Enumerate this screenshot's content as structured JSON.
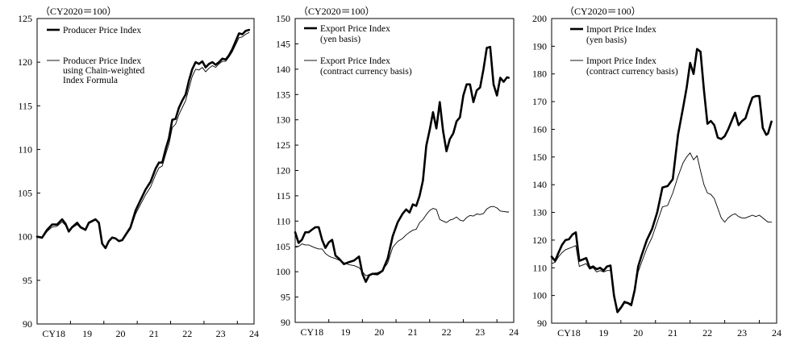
{
  "chart_data": [
    {
      "type": "line",
      "unit_label": "（CY2020＝100）",
      "ylim": [
        90,
        125
      ],
      "yticks": [
        90,
        95,
        100,
        105,
        110,
        115,
        120,
        125
      ],
      "xlim": [
        2018,
        2024.5
      ],
      "xticks": [
        {
          "label": "CY18",
          "value": 2018.5
        },
        {
          "label": "19",
          "value": 2019.5
        },
        {
          "label": "20",
          "value": 2020.5
        },
        {
          "label": "21",
          "value": 2021.5
        },
        {
          "label": "22",
          "value": 2022.5
        },
        {
          "label": "23",
          "value": 2023.5
        },
        {
          "label": "24",
          "value": 2024.5
        }
      ],
      "series": [
        {
          "name": "Producer Price Index",
          "legend_lines": [
            "Producer Price Index"
          ],
          "style": "thick",
          "x": [
            2018.0,
            2018.15,
            2018.3,
            2018.45,
            2018.6,
            2018.75,
            2018.85,
            2018.95,
            2019.05,
            2019.2,
            2019.3,
            2019.45,
            2019.55,
            2019.65,
            2019.75,
            2019.85,
            2019.95,
            2020.05,
            2020.15,
            2020.25,
            2020.35,
            2020.45,
            2020.55,
            2020.65,
            2020.8,
            2020.95,
            2021.1,
            2021.25,
            2021.4,
            2021.55,
            2021.65,
            2021.75,
            2021.85,
            2021.95,
            2022.05,
            2022.15,
            2022.25,
            2022.35,
            2022.45,
            2022.55,
            2022.65,
            2022.75,
            2022.85,
            2022.95,
            2023.05,
            2023.15,
            2023.25,
            2023.35,
            2023.45,
            2023.55,
            2023.65,
            2023.75,
            2023.85,
            2023.95,
            2024.05,
            2024.15,
            2024.25,
            2024.35
          ],
          "values": [
            100.0,
            99.9,
            100.8,
            101.4,
            101.4,
            102.0,
            101.5,
            100.6,
            101.1,
            101.6,
            101.1,
            100.8,
            101.6,
            101.8,
            102.0,
            101.6,
            99.2,
            98.7,
            99.5,
            99.9,
            99.8,
            99.5,
            99.6,
            100.2,
            101.1,
            103.0,
            104.2,
            105.4,
            106.3,
            107.8,
            108.5,
            108.5,
            110.0,
            111.3,
            113.4,
            113.5,
            114.8,
            115.6,
            116.3,
            117.9,
            119.2,
            120.0,
            119.8,
            120.1,
            119.4,
            119.8,
            120.0,
            119.7,
            120.0,
            120.4,
            120.3,
            120.8,
            121.5,
            122.4,
            123.3,
            123.2,
            123.6,
            123.7
          ]
        },
        {
          "name": "Producer Price Index using Chain-weighted Index Formula",
          "legend_lines": [
            "Producer Price Index",
            "using Chain-weighted",
            "Index Formula"
          ],
          "style": "thin",
          "x": [
            2018.0,
            2018.15,
            2018.3,
            2018.45,
            2018.6,
            2018.75,
            2018.85,
            2018.95,
            2019.05,
            2019.2,
            2019.3,
            2019.45,
            2019.55,
            2019.65,
            2019.75,
            2019.85,
            2019.95,
            2020.05,
            2020.15,
            2020.25,
            2020.35,
            2020.45,
            2020.55,
            2020.65,
            2020.8,
            2020.95,
            2021.1,
            2021.25,
            2021.4,
            2021.55,
            2021.65,
            2021.75,
            2021.85,
            2021.95,
            2022.05,
            2022.15,
            2022.25,
            2022.35,
            2022.45,
            2022.55,
            2022.65,
            2022.75,
            2022.85,
            2022.95,
            2023.05,
            2023.15,
            2023.25,
            2023.35,
            2023.45,
            2023.55,
            2023.65,
            2023.75,
            2023.85,
            2023.95,
            2024.05,
            2024.15,
            2024.25,
            2024.35
          ],
          "values": [
            100.0,
            99.8,
            100.6,
            101.1,
            101.2,
            101.7,
            101.3,
            100.5,
            101.0,
            101.4,
            101.0,
            100.7,
            101.5,
            101.7,
            101.9,
            101.5,
            99.2,
            98.8,
            99.5,
            99.9,
            99.8,
            99.5,
            99.6,
            100.1,
            100.9,
            102.6,
            103.7,
            104.8,
            105.7,
            107.1,
            107.9,
            108.1,
            109.4,
            110.6,
            112.5,
            112.9,
            114.0,
            114.8,
            115.6,
            117.0,
            118.4,
            119.2,
            119.1,
            119.4,
            118.9,
            119.3,
            119.6,
            119.4,
            119.8,
            120.1,
            120.1,
            120.6,
            121.2,
            122.0,
            122.8,
            122.9,
            123.2,
            123.4
          ]
        }
      ]
    },
    {
      "type": "line",
      "unit_label": "（CY2020＝100）",
      "ylim": [
        90,
        150
      ],
      "yticks": [
        90,
        95,
        100,
        105,
        110,
        115,
        120,
        125,
        130,
        135,
        140,
        145,
        150
      ],
      "xlim": [
        2018,
        2024.5
      ],
      "xticks": [
        {
          "label": "CY18",
          "value": 2018.5
        },
        {
          "label": "19",
          "value": 2019.5
        },
        {
          "label": "20",
          "value": 2020.5
        },
        {
          "label": "21",
          "value": 2021.5
        },
        {
          "label": "22",
          "value": 2022.5
        },
        {
          "label": "23",
          "value": 2023.5
        },
        {
          "label": "24",
          "value": 2024.5
        }
      ],
      "series": [
        {
          "name": "Export Price Index (yen basis)",
          "legend_lines": [
            "Export Price Index",
            "(yen basis)"
          ],
          "style": "thick",
          "x": [
            2018.0,
            2018.1,
            2018.2,
            2018.3,
            2018.4,
            2018.5,
            2018.6,
            2018.7,
            2018.8,
            2018.9,
            2019.0,
            2019.1,
            2019.2,
            2019.3,
            2019.45,
            2019.6,
            2019.75,
            2019.9,
            2020.0,
            2020.1,
            2020.2,
            2020.3,
            2020.45,
            2020.6,
            2020.75,
            2020.9,
            2021.05,
            2021.2,
            2021.3,
            2021.4,
            2021.5,
            2021.6,
            2021.7,
            2021.8,
            2021.9,
            2022.0,
            2022.1,
            2022.2,
            2022.3,
            2022.4,
            2022.5,
            2022.6,
            2022.7,
            2022.8,
            2022.9,
            2023.0,
            2023.1,
            2023.2,
            2023.3,
            2023.4,
            2023.5,
            2023.6,
            2023.7,
            2023.8,
            2023.9,
            2024.0,
            2024.1,
            2024.2,
            2024.3,
            2024.35
          ],
          "values": [
            107.8,
            105.7,
            106.3,
            107.8,
            107.8,
            108.3,
            108.8,
            108.8,
            106.3,
            104.7,
            105.8,
            106.3,
            103.2,
            102.6,
            101.5,
            101.9,
            102.2,
            103.0,
            99.6,
            98.0,
            99.3,
            99.6,
            99.5,
            100.2,
            102.6,
            107.0,
            109.8,
            111.5,
            112.3,
            111.7,
            113.3,
            113.0,
            115.0,
            118.0,
            124.9,
            128.0,
            131.5,
            128.3,
            133.5,
            127.8,
            123.8,
            126.2,
            127.3,
            129.7,
            130.5,
            134.8,
            137.0,
            137.0,
            133.5,
            135.8,
            136.4,
            140.0,
            144.2,
            144.4,
            137.0,
            134.8,
            138.3,
            137.5,
            138.4,
            138.3
          ]
        },
        {
          "name": "Export Price Index (contract currency basis)",
          "legend_lines": [
            "Export Price Index",
            "(contract currency basis)"
          ],
          "style": "thin",
          "x": [
            2018.0,
            2018.1,
            2018.2,
            2018.3,
            2018.4,
            2018.5,
            2018.6,
            2018.7,
            2018.8,
            2018.9,
            2019.0,
            2019.1,
            2019.2,
            2019.3,
            2019.45,
            2019.6,
            2019.75,
            2019.9,
            2020.0,
            2020.1,
            2020.2,
            2020.3,
            2020.45,
            2020.6,
            2020.75,
            2020.9,
            2021.05,
            2021.2,
            2021.3,
            2021.4,
            2021.5,
            2021.6,
            2021.7,
            2021.8,
            2021.9,
            2022.0,
            2022.1,
            2022.2,
            2022.3,
            2022.4,
            2022.5,
            2022.6,
            2022.7,
            2022.8,
            2022.9,
            2023.0,
            2023.1,
            2023.2,
            2023.3,
            2023.4,
            2023.5,
            2023.6,
            2023.7,
            2023.8,
            2023.9,
            2024.0,
            2024.1,
            2024.2,
            2024.3,
            2024.35
          ],
          "values": [
            104.8,
            105.0,
            105.5,
            105.3,
            105.3,
            105.0,
            104.7,
            104.5,
            104.5,
            103.6,
            103.1,
            102.8,
            102.6,
            102.3,
            101.8,
            101.4,
            101.2,
            100.8,
            100.0,
            99.2,
            99.4,
            99.7,
            99.8,
            100.3,
            101.7,
            104.8,
            106.0,
            106.6,
            107.3,
            107.8,
            108.2,
            108.4,
            109.7,
            110.3,
            111.3,
            112.1,
            112.5,
            112.3,
            110.3,
            110.0,
            109.7,
            110.2,
            110.4,
            110.8,
            110.2,
            110.0,
            110.7,
            111.1,
            111.0,
            111.4,
            111.3,
            111.5,
            112.4,
            112.8,
            112.9,
            112.6,
            112.0,
            111.9,
            111.8,
            111.8
          ]
        }
      ]
    },
    {
      "type": "line",
      "unit_label": "（CY2020＝100）",
      "ylim": [
        90,
        200
      ],
      "yticks": [
        90,
        100,
        110,
        120,
        130,
        140,
        150,
        160,
        170,
        180,
        190,
        200
      ],
      "xlim": [
        2018,
        2024.5
      ],
      "xticks": [
        {
          "label": "CY18",
          "value": 2018.5
        },
        {
          "label": "19",
          "value": 2019.5
        },
        {
          "label": "20",
          "value": 2020.5
        },
        {
          "label": "21",
          "value": 2021.5
        },
        {
          "label": "22",
          "value": 2022.5
        },
        {
          "label": "23",
          "value": 2023.5
        },
        {
          "label": "24",
          "value": 2024.5
        }
      ],
      "series": [
        {
          "name": "Import Price Index (yen basis)",
          "legend_lines": [
            "Import Price Index",
            "(yen basis)"
          ],
          "style": "thick",
          "x": [
            2018.0,
            2018.1,
            2018.2,
            2018.3,
            2018.4,
            2018.5,
            2018.6,
            2018.7,
            2018.8,
            2018.9,
            2019.0,
            2019.1,
            2019.2,
            2019.3,
            2019.4,
            2019.5,
            2019.6,
            2019.7,
            2019.8,
            2019.9,
            2020.0,
            2020.1,
            2020.2,
            2020.3,
            2020.4,
            2020.5,
            2020.6,
            2020.75,
            2020.9,
            2021.05,
            2021.2,
            2021.35,
            2021.5,
            2021.65,
            2021.8,
            2021.9,
            2022.0,
            2022.1,
            2022.2,
            2022.3,
            2022.4,
            2022.5,
            2022.6,
            2022.7,
            2022.8,
            2022.9,
            2023.0,
            2023.1,
            2023.2,
            2023.3,
            2023.4,
            2023.5,
            2023.6,
            2023.7,
            2023.8,
            2023.9,
            2024.0,
            2024.1,
            2024.2,
            2024.25,
            2024.35
          ],
          "values": [
            114.0,
            112.5,
            115.5,
            118.3,
            120.0,
            120.3,
            122.0,
            122.8,
            112.5,
            113.0,
            113.5,
            110.0,
            110.5,
            109.5,
            110.0,
            109.0,
            110.5,
            110.8,
            100.0,
            94.0,
            95.5,
            97.5,
            97.3,
            96.5,
            102.0,
            110.5,
            114.5,
            120.0,
            124.0,
            130.0,
            139.0,
            139.5,
            142.0,
            158.0,
            168.0,
            175.0,
            184.0,
            180.0,
            189.0,
            188.0,
            174.0,
            162.0,
            163.0,
            161.5,
            157.0,
            156.5,
            157.5,
            160.0,
            163.0,
            166.0,
            161.5,
            163.0,
            164.0,
            168.0,
            171.5,
            172.0,
            172.0,
            160.5,
            158.0,
            158.5,
            162.8
          ]
        },
        {
          "name": "Import Price Index (contract currency basis)",
          "legend_lines": [
            "Import Price Index",
            "(contract currency basis)"
          ],
          "style": "thin",
          "x": [
            2018.0,
            2018.1,
            2018.2,
            2018.3,
            2018.4,
            2018.5,
            2018.6,
            2018.7,
            2018.8,
            2018.9,
            2019.0,
            2019.1,
            2019.2,
            2019.3,
            2019.4,
            2019.5,
            2019.6,
            2019.7,
            2019.8,
            2019.9,
            2020.0,
            2020.1,
            2020.2,
            2020.3,
            2020.4,
            2020.5,
            2020.6,
            2020.75,
            2020.9,
            2021.05,
            2021.2,
            2021.35,
            2021.5,
            2021.65,
            2021.8,
            2021.9,
            2022.0,
            2022.1,
            2022.2,
            2022.3,
            2022.4,
            2022.5,
            2022.6,
            2022.7,
            2022.8,
            2022.9,
            2023.0,
            2023.1,
            2023.2,
            2023.3,
            2023.4,
            2023.5,
            2023.6,
            2023.7,
            2023.8,
            2023.9,
            2024.0,
            2024.1,
            2024.2,
            2024.25,
            2024.35
          ],
          "values": [
            111.5,
            112.0,
            114.0,
            115.5,
            116.5,
            117.0,
            117.5,
            118.0,
            110.5,
            111.0,
            111.5,
            109.5,
            110.0,
            108.5,
            109.0,
            108.5,
            109.0,
            109.0,
            99.0,
            94.5,
            96.0,
            98.0,
            97.5,
            97.0,
            101.5,
            108.5,
            112.0,
            117.0,
            121.0,
            126.5,
            132.0,
            132.5,
            137.0,
            143.0,
            148.0,
            150.0,
            151.5,
            149.0,
            150.5,
            145.0,
            140.0,
            137.0,
            136.5,
            135.0,
            131.5,
            128.0,
            126.5,
            128.0,
            129.0,
            129.5,
            128.5,
            128.0,
            128.0,
            128.5,
            129.0,
            128.5,
            129.0,
            128.0,
            127.0,
            126.5,
            126.5
          ]
        }
      ]
    }
  ]
}
